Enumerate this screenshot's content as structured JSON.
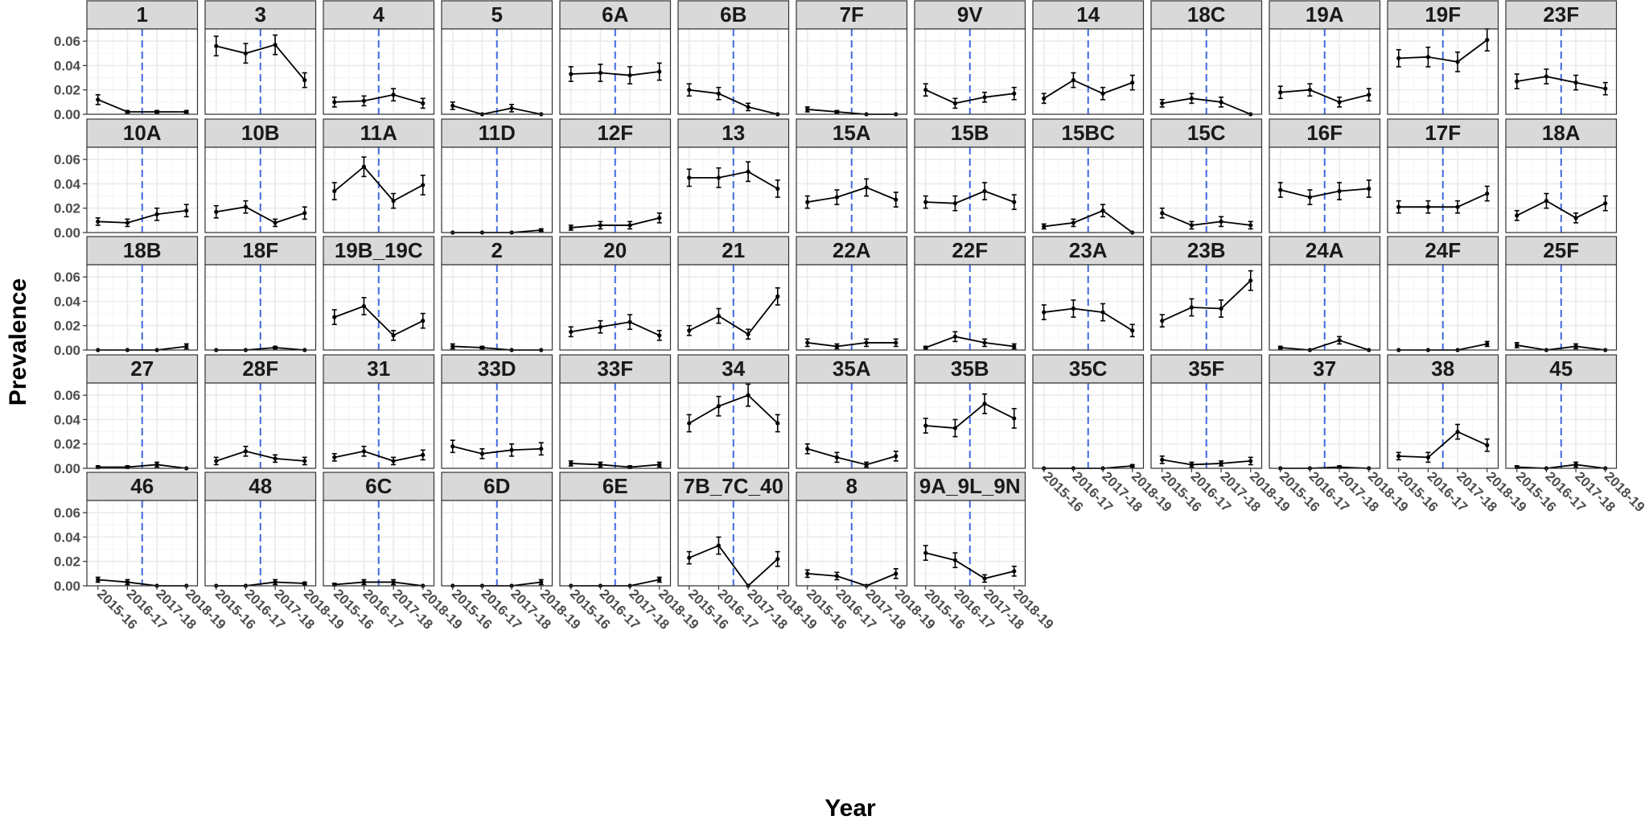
{
  "chart_data": {
    "type": "line",
    "xlabel": "Year",
    "ylabel": "Prevalence",
    "x": [
      "2015-16",
      "2016-17",
      "2017-18",
      "2018-19"
    ],
    "ylim": [
      0,
      0.07
    ],
    "yticks": [
      "0.00",
      "0.02",
      "0.04",
      "0.06"
    ],
    "ytick_values": [
      0,
      0.02,
      0.04,
      0.06
    ],
    "vline_at_x": 2.5,
    "grid": true,
    "colors": {
      "line": "#000000",
      "vline": "#4169e1",
      "strip_bg": "#d9d9d9",
      "grid_major": "#ebebeb",
      "grid_minor": "#f5f5f5",
      "panel_border": "#333333"
    },
    "panels": [
      {
        "name": "1",
        "values": [
          0.012,
          0.002,
          0.002,
          0.002
        ],
        "err": [
          0.004,
          0.001,
          0.001,
          0.001
        ]
      },
      {
        "name": "3",
        "values": [
          0.056,
          0.05,
          0.057,
          0.028
        ],
        "err": [
          0.008,
          0.008,
          0.008,
          0.006
        ]
      },
      {
        "name": "4",
        "values": [
          0.01,
          0.011,
          0.016,
          0.009
        ],
        "err": [
          0.004,
          0.004,
          0.005,
          0.004
        ]
      },
      {
        "name": "5",
        "values": [
          0.007,
          0.0,
          0.005,
          0.0
        ],
        "err": [
          0.003,
          0.0,
          0.003,
          0.0
        ]
      },
      {
        "name": "6A",
        "values": [
          0.033,
          0.034,
          0.032,
          0.035
        ],
        "err": [
          0.006,
          0.007,
          0.007,
          0.007
        ]
      },
      {
        "name": "6B",
        "values": [
          0.02,
          0.017,
          0.006,
          0.0
        ],
        "err": [
          0.005,
          0.005,
          0.003,
          0.0
        ]
      },
      {
        "name": "7F",
        "values": [
          0.004,
          0.002,
          0.0,
          0.0
        ],
        "err": [
          0.002,
          0.001,
          0.0,
          0.0
        ]
      },
      {
        "name": "9V",
        "values": [
          0.02,
          0.009,
          0.014,
          0.017
        ],
        "err": [
          0.005,
          0.004,
          0.004,
          0.005
        ]
      },
      {
        "name": "14",
        "values": [
          0.013,
          0.028,
          0.017,
          0.026
        ],
        "err": [
          0.004,
          0.006,
          0.005,
          0.006
        ]
      },
      {
        "name": "18C",
        "values": [
          0.009,
          0.013,
          0.01,
          0.0
        ],
        "err": [
          0.003,
          0.004,
          0.004,
          0.0
        ]
      },
      {
        "name": "19A",
        "values": [
          0.018,
          0.02,
          0.01,
          0.016
        ],
        "err": [
          0.005,
          0.005,
          0.004,
          0.005
        ]
      },
      {
        "name": "19F",
        "values": [
          0.046,
          0.047,
          0.043,
          0.061
        ],
        "err": [
          0.007,
          0.008,
          0.008,
          0.009
        ]
      },
      {
        "name": "23F",
        "values": [
          0.027,
          0.031,
          0.026,
          0.021
        ],
        "err": [
          0.006,
          0.006,
          0.006,
          0.005
        ]
      },
      {
        "name": "10A",
        "values": [
          0.009,
          0.008,
          0.015,
          0.018
        ],
        "err": [
          0.003,
          0.003,
          0.005,
          0.005
        ]
      },
      {
        "name": "10B",
        "values": [
          0.017,
          0.021,
          0.008,
          0.016
        ],
        "err": [
          0.005,
          0.005,
          0.003,
          0.005
        ]
      },
      {
        "name": "11A",
        "values": [
          0.034,
          0.054,
          0.026,
          0.039
        ],
        "err": [
          0.007,
          0.008,
          0.006,
          0.008
        ]
      },
      {
        "name": "11D",
        "values": [
          0.0,
          0.0,
          0.0,
          0.002
        ],
        "err": [
          0.0,
          0.0,
          0.0,
          0.001
        ]
      },
      {
        "name": "12F",
        "values": [
          0.004,
          0.006,
          0.006,
          0.012
        ],
        "err": [
          0.002,
          0.003,
          0.003,
          0.004
        ]
      },
      {
        "name": "13",
        "values": [
          0.045,
          0.045,
          0.05,
          0.036
        ],
        "err": [
          0.007,
          0.008,
          0.008,
          0.007
        ]
      },
      {
        "name": "15A",
        "values": [
          0.025,
          0.029,
          0.037,
          0.027
        ],
        "err": [
          0.005,
          0.006,
          0.007,
          0.006
        ]
      },
      {
        "name": "15B",
        "values": [
          0.025,
          0.024,
          0.034,
          0.025
        ],
        "err": [
          0.005,
          0.006,
          0.007,
          0.006
        ]
      },
      {
        "name": "15BC",
        "values": [
          0.005,
          0.008,
          0.018,
          0.0
        ],
        "err": [
          0.002,
          0.003,
          0.005,
          0.0
        ]
      },
      {
        "name": "15C",
        "values": [
          0.016,
          0.006,
          0.009,
          0.006
        ],
        "err": [
          0.004,
          0.003,
          0.004,
          0.003
        ]
      },
      {
        "name": "16F",
        "values": [
          0.035,
          0.029,
          0.034,
          0.036
        ],
        "err": [
          0.006,
          0.006,
          0.007,
          0.007
        ]
      },
      {
        "name": "17F",
        "values": [
          0.021,
          0.021,
          0.021,
          0.032
        ],
        "err": [
          0.005,
          0.005,
          0.005,
          0.006
        ]
      },
      {
        "name": "18A",
        "values": [
          0.014,
          0.026,
          0.012,
          0.024
        ],
        "err": [
          0.004,
          0.006,
          0.004,
          0.006
        ]
      },
      {
        "name": "18B",
        "values": [
          0.0,
          0.0,
          0.0,
          0.003
        ],
        "err": [
          0.0,
          0.0,
          0.0,
          0.002
        ]
      },
      {
        "name": "18F",
        "values": [
          0.0,
          0.0,
          0.002,
          0.0
        ],
        "err": [
          0.0,
          0.0,
          0.001,
          0.0
        ]
      },
      {
        "name": "19B_19C",
        "values": [
          0.027,
          0.036,
          0.012,
          0.024
        ],
        "err": [
          0.006,
          0.007,
          0.004,
          0.006
        ]
      },
      {
        "name": "2",
        "values": [
          0.003,
          0.002,
          0.0,
          0.0
        ],
        "err": [
          0.002,
          0.001,
          0.0,
          0.0
        ]
      },
      {
        "name": "20",
        "values": [
          0.015,
          0.019,
          0.023,
          0.012
        ],
        "err": [
          0.004,
          0.005,
          0.006,
          0.004
        ]
      },
      {
        "name": "21",
        "values": [
          0.016,
          0.028,
          0.013,
          0.044
        ],
        "err": [
          0.004,
          0.006,
          0.004,
          0.007
        ]
      },
      {
        "name": "22A",
        "values": [
          0.006,
          0.003,
          0.006,
          0.006
        ],
        "err": [
          0.003,
          0.002,
          0.003,
          0.003
        ]
      },
      {
        "name": "22F",
        "values": [
          0.002,
          0.011,
          0.006,
          0.003
        ],
        "err": [
          0.001,
          0.004,
          0.003,
          0.002
        ]
      },
      {
        "name": "23A",
        "values": [
          0.031,
          0.034,
          0.031,
          0.016
        ],
        "err": [
          0.006,
          0.007,
          0.007,
          0.005
        ]
      },
      {
        "name": "23B",
        "values": [
          0.024,
          0.035,
          0.034,
          0.057
        ],
        "err": [
          0.005,
          0.007,
          0.007,
          0.008
        ]
      },
      {
        "name": "24A",
        "values": [
          0.002,
          0.0,
          0.008,
          0.0
        ],
        "err": [
          0.001,
          0.0,
          0.003,
          0.0
        ]
      },
      {
        "name": "24F",
        "values": [
          0.0,
          0.0,
          0.0,
          0.005
        ],
        "err": [
          0.0,
          0.0,
          0.0,
          0.002
        ]
      },
      {
        "name": "25F",
        "values": [
          0.004,
          0.0,
          0.003,
          0.0
        ],
        "err": [
          0.002,
          0.0,
          0.002,
          0.0
        ]
      },
      {
        "name": "27",
        "values": [
          0.001,
          0.001,
          0.003,
          0.0
        ],
        "err": [
          0.001,
          0.001,
          0.002,
          0.0
        ]
      },
      {
        "name": "28F",
        "values": [
          0.006,
          0.014,
          0.008,
          0.006
        ],
        "err": [
          0.003,
          0.004,
          0.003,
          0.003
        ]
      },
      {
        "name": "31",
        "values": [
          0.009,
          0.014,
          0.006,
          0.011
        ],
        "err": [
          0.003,
          0.004,
          0.003,
          0.004
        ]
      },
      {
        "name": "33D",
        "values": [
          0.018,
          0.012,
          0.015,
          0.016
        ],
        "err": [
          0.005,
          0.004,
          0.005,
          0.005
        ]
      },
      {
        "name": "33F",
        "values": [
          0.004,
          0.003,
          0.001,
          0.003
        ],
        "err": [
          0.002,
          0.002,
          0.001,
          0.002
        ]
      },
      {
        "name": "34",
        "values": [
          0.037,
          0.051,
          0.06,
          0.037
        ],
        "err": [
          0.007,
          0.008,
          0.009,
          0.007
        ]
      },
      {
        "name": "35A",
        "values": [
          0.016,
          0.009,
          0.003,
          0.01
        ],
        "err": [
          0.004,
          0.004,
          0.002,
          0.004
        ]
      },
      {
        "name": "35B",
        "values": [
          0.035,
          0.033,
          0.053,
          0.041
        ],
        "err": [
          0.006,
          0.007,
          0.008,
          0.008
        ]
      },
      {
        "name": "35C",
        "values": [
          0.0,
          0.0,
          0.0,
          0.002
        ],
        "err": [
          0.0,
          0.0,
          0.0,
          0.001
        ]
      },
      {
        "name": "35F",
        "values": [
          0.007,
          0.003,
          0.004,
          0.006
        ],
        "err": [
          0.003,
          0.002,
          0.002,
          0.003
        ]
      },
      {
        "name": "37",
        "values": [
          0.0,
          0.0,
          0.001,
          0.0
        ],
        "err": [
          0.0,
          0.0,
          0.001,
          0.0
        ]
      },
      {
        "name": "38",
        "values": [
          0.01,
          0.009,
          0.03,
          0.019
        ],
        "err": [
          0.003,
          0.004,
          0.006,
          0.005
        ]
      },
      {
        "name": "45",
        "values": [
          0.001,
          0.0,
          0.003,
          0.0
        ],
        "err": [
          0.001,
          0.0,
          0.002,
          0.0
        ]
      },
      {
        "name": "46",
        "values": [
          0.005,
          0.003,
          0.0,
          0.0
        ],
        "err": [
          0.002,
          0.002,
          0.0,
          0.0
        ]
      },
      {
        "name": "48",
        "values": [
          0.0,
          0.0,
          0.003,
          0.002
        ],
        "err": [
          0.0,
          0.0,
          0.002,
          0.001
        ]
      },
      {
        "name": "6C",
        "values": [
          0.001,
          0.003,
          0.003,
          0.0
        ],
        "err": [
          0.001,
          0.002,
          0.002,
          0.0
        ]
      },
      {
        "name": "6D",
        "values": [
          0.0,
          0.0,
          0.0,
          0.003
        ],
        "err": [
          0.0,
          0.0,
          0.0,
          0.002
        ]
      },
      {
        "name": "6E",
        "values": [
          0.0,
          0.0,
          0.0,
          0.005
        ],
        "err": [
          0.0,
          0.0,
          0.0,
          0.002
        ]
      },
      {
        "name": "7B_7C_40",
        "values": [
          0.023,
          0.033,
          0.0,
          0.022
        ],
        "err": [
          0.005,
          0.007,
          0.0,
          0.006
        ]
      },
      {
        "name": "8",
        "values": [
          0.01,
          0.008,
          0.0,
          0.01
        ],
        "err": [
          0.003,
          0.003,
          0.0,
          0.004
        ]
      },
      {
        "name": "9A_9L_9N",
        "values": [
          0.027,
          0.021,
          0.006,
          0.012
        ],
        "err": [
          0.006,
          0.006,
          0.003,
          0.004
        ]
      }
    ]
  }
}
